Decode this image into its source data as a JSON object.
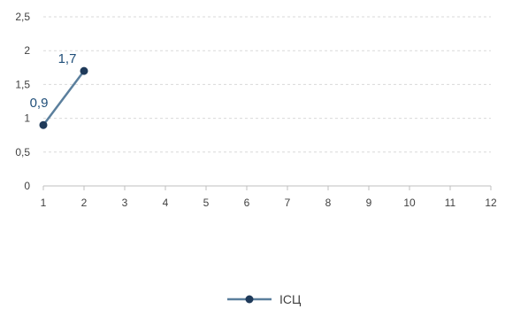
{
  "chart_data": {
    "type": "line",
    "title": "",
    "xlabel": "",
    "ylabel": "",
    "x_ticks": [
      "1",
      "2",
      "3",
      "4",
      "5",
      "6",
      "7",
      "8",
      "9",
      "10",
      "11",
      "12"
    ],
    "y_ticks": [
      "0",
      "0,5",
      "1",
      "1,5",
      "2",
      "2,5"
    ],
    "xlim": [
      1,
      12
    ],
    "ylim": [
      0,
      2.5
    ],
    "grid": "horizontal dashed",
    "legend_position": "bottom",
    "series": [
      {
        "name": "ІСЦ",
        "x": [
          1,
          2
        ],
        "values": [
          0.9,
          1.7
        ],
        "labels": [
          "0,9",
          "1,7"
        ],
        "color": "#5b7f9d",
        "marker_color": "#1f3a5a"
      }
    ],
    "label_color": "#1f4e79",
    "grid_color": "#d9d9d9",
    "axis_color": "#bfbfbf"
  }
}
